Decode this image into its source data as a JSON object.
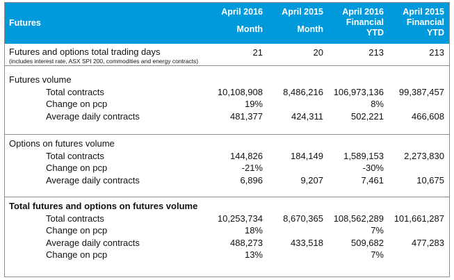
{
  "header": {
    "label": "Futures",
    "columns": [
      [
        "April 2016",
        "Month"
      ],
      [
        "April 2015",
        "Month"
      ],
      [
        "April 2016",
        "Financial",
        "YTD"
      ],
      [
        "April 2015",
        "Financial",
        "YTD"
      ]
    ]
  },
  "trading_days": {
    "label": "Futures and options total trading days",
    "note": "(includes interest rate, ASX SPI 200, commodities and energy contracts)",
    "values": [
      "21",
      "20",
      "213",
      "213"
    ]
  },
  "futures_volume": {
    "title": "Futures volume",
    "rows": [
      {
        "label": "Total contracts",
        "values": [
          "10,108,908",
          "8,486,216",
          "106,973,136",
          "99,387,457"
        ]
      },
      {
        "label": "Change on pcp",
        "values": [
          "19%",
          "",
          "8%",
          ""
        ]
      },
      {
        "label": "Average daily contracts",
        "values": [
          "481,377",
          "424,311",
          "502,221",
          "466,608"
        ]
      }
    ]
  },
  "options_volume": {
    "title": "Options on futures volume",
    "rows": [
      {
        "label": "Total contracts",
        "values": [
          "144,826",
          "184,149",
          "1,589,153",
          "2,273,830"
        ]
      },
      {
        "label": "Change on pcp",
        "values": [
          "-21%",
          "",
          "-30%",
          ""
        ]
      },
      {
        "label": "Average daily contracts",
        "values": [
          "6,896",
          "9,207",
          "7,461",
          "10,675"
        ]
      }
    ]
  },
  "total_volume": {
    "title": "Total futures and options on futures volume",
    "rows": [
      {
        "label": "Total contracts",
        "values": [
          "10,253,734",
          "8,670,365",
          "108,562,289",
          "101,661,287"
        ]
      },
      {
        "label": "Change on pcp",
        "values": [
          "18%",
          "",
          "7%",
          ""
        ]
      },
      {
        "label": "Average daily contracts",
        "values": [
          "488,273",
          "433,518",
          "509,682",
          "477,283"
        ]
      },
      {
        "label": "Change on pcp",
        "values": [
          "13%",
          "",
          "7%",
          ""
        ]
      }
    ]
  },
  "colors": {
    "header_bg": "#0099dc",
    "header_text": "#ffffff",
    "border": "#8c8c8c"
  }
}
